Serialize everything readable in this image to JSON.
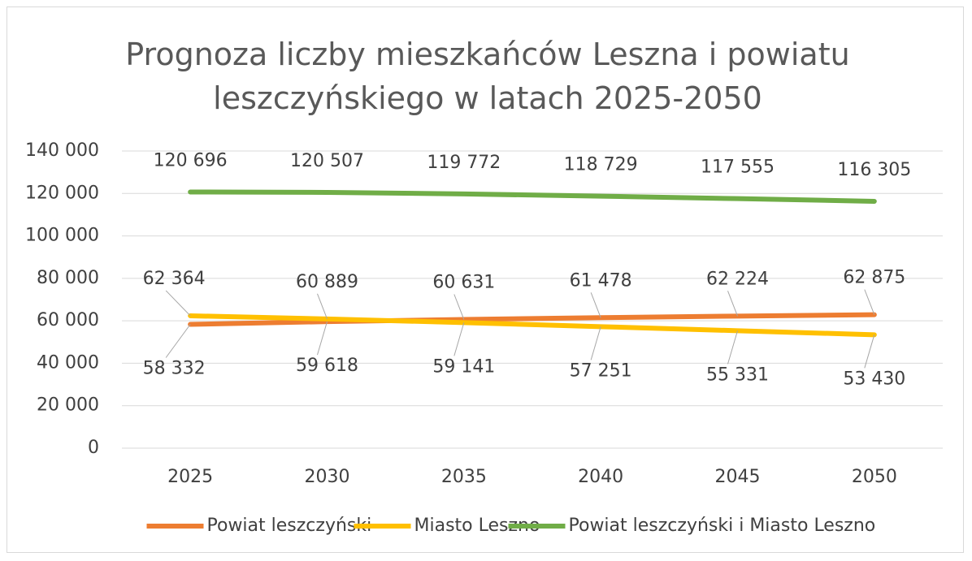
{
  "chart_data": {
    "type": "line",
    "title": "Prognoza liczby mieszkańców Leszna i powiatu leszczyńskiego w latach 2025-2050",
    "categories": [
      "2025",
      "2030",
      "2035",
      "2040",
      "2045",
      "2050"
    ],
    "series": [
      {
        "name": "Powiat leszczyński",
        "color": "#ed7d31",
        "values": [
          58332,
          59618,
          60631,
          61478,
          62224,
          62875
        ],
        "value_labels": [
          "58 332",
          "59 618",
          "60 631",
          "61 478",
          "62 224",
          "62 875"
        ]
      },
      {
        "name": "Miasto Leszno",
        "color": "#ffc000",
        "values": [
          62364,
          60889,
          59141,
          57251,
          55331,
          53430
        ],
        "value_labels": [
          "62 364",
          "60 889",
          "59 141",
          "57 251",
          "55 331",
          "53 430"
        ]
      },
      {
        "name": "Powiat leszczyński i Miasto Leszno",
        "color": "#70ad47",
        "values": [
          120696,
          120507,
          119772,
          118729,
          117555,
          116305
        ],
        "value_labels": [
          "120 696",
          "120 507",
          "119 772",
          "118 729",
          "117 555",
          "116 305"
        ]
      }
    ],
    "ylim": [
      0,
      140000
    ],
    "yticks": [
      0,
      {
        "value": 20000,
        "label": "20 000"
      },
      {
        "value": 40000,
        "label": "40 000"
      },
      {
        "value": 60000,
        "label": "60 000"
      },
      {
        "value": 80000,
        "label": "80 000"
      },
      {
        "value": 100000,
        "label": "100 000"
      },
      {
        "value": 120000,
        "label": "120 000"
      },
      {
        "value": 140000,
        "label": "140 000"
      }
    ],
    "grid": true,
    "legend": "bottom"
  }
}
